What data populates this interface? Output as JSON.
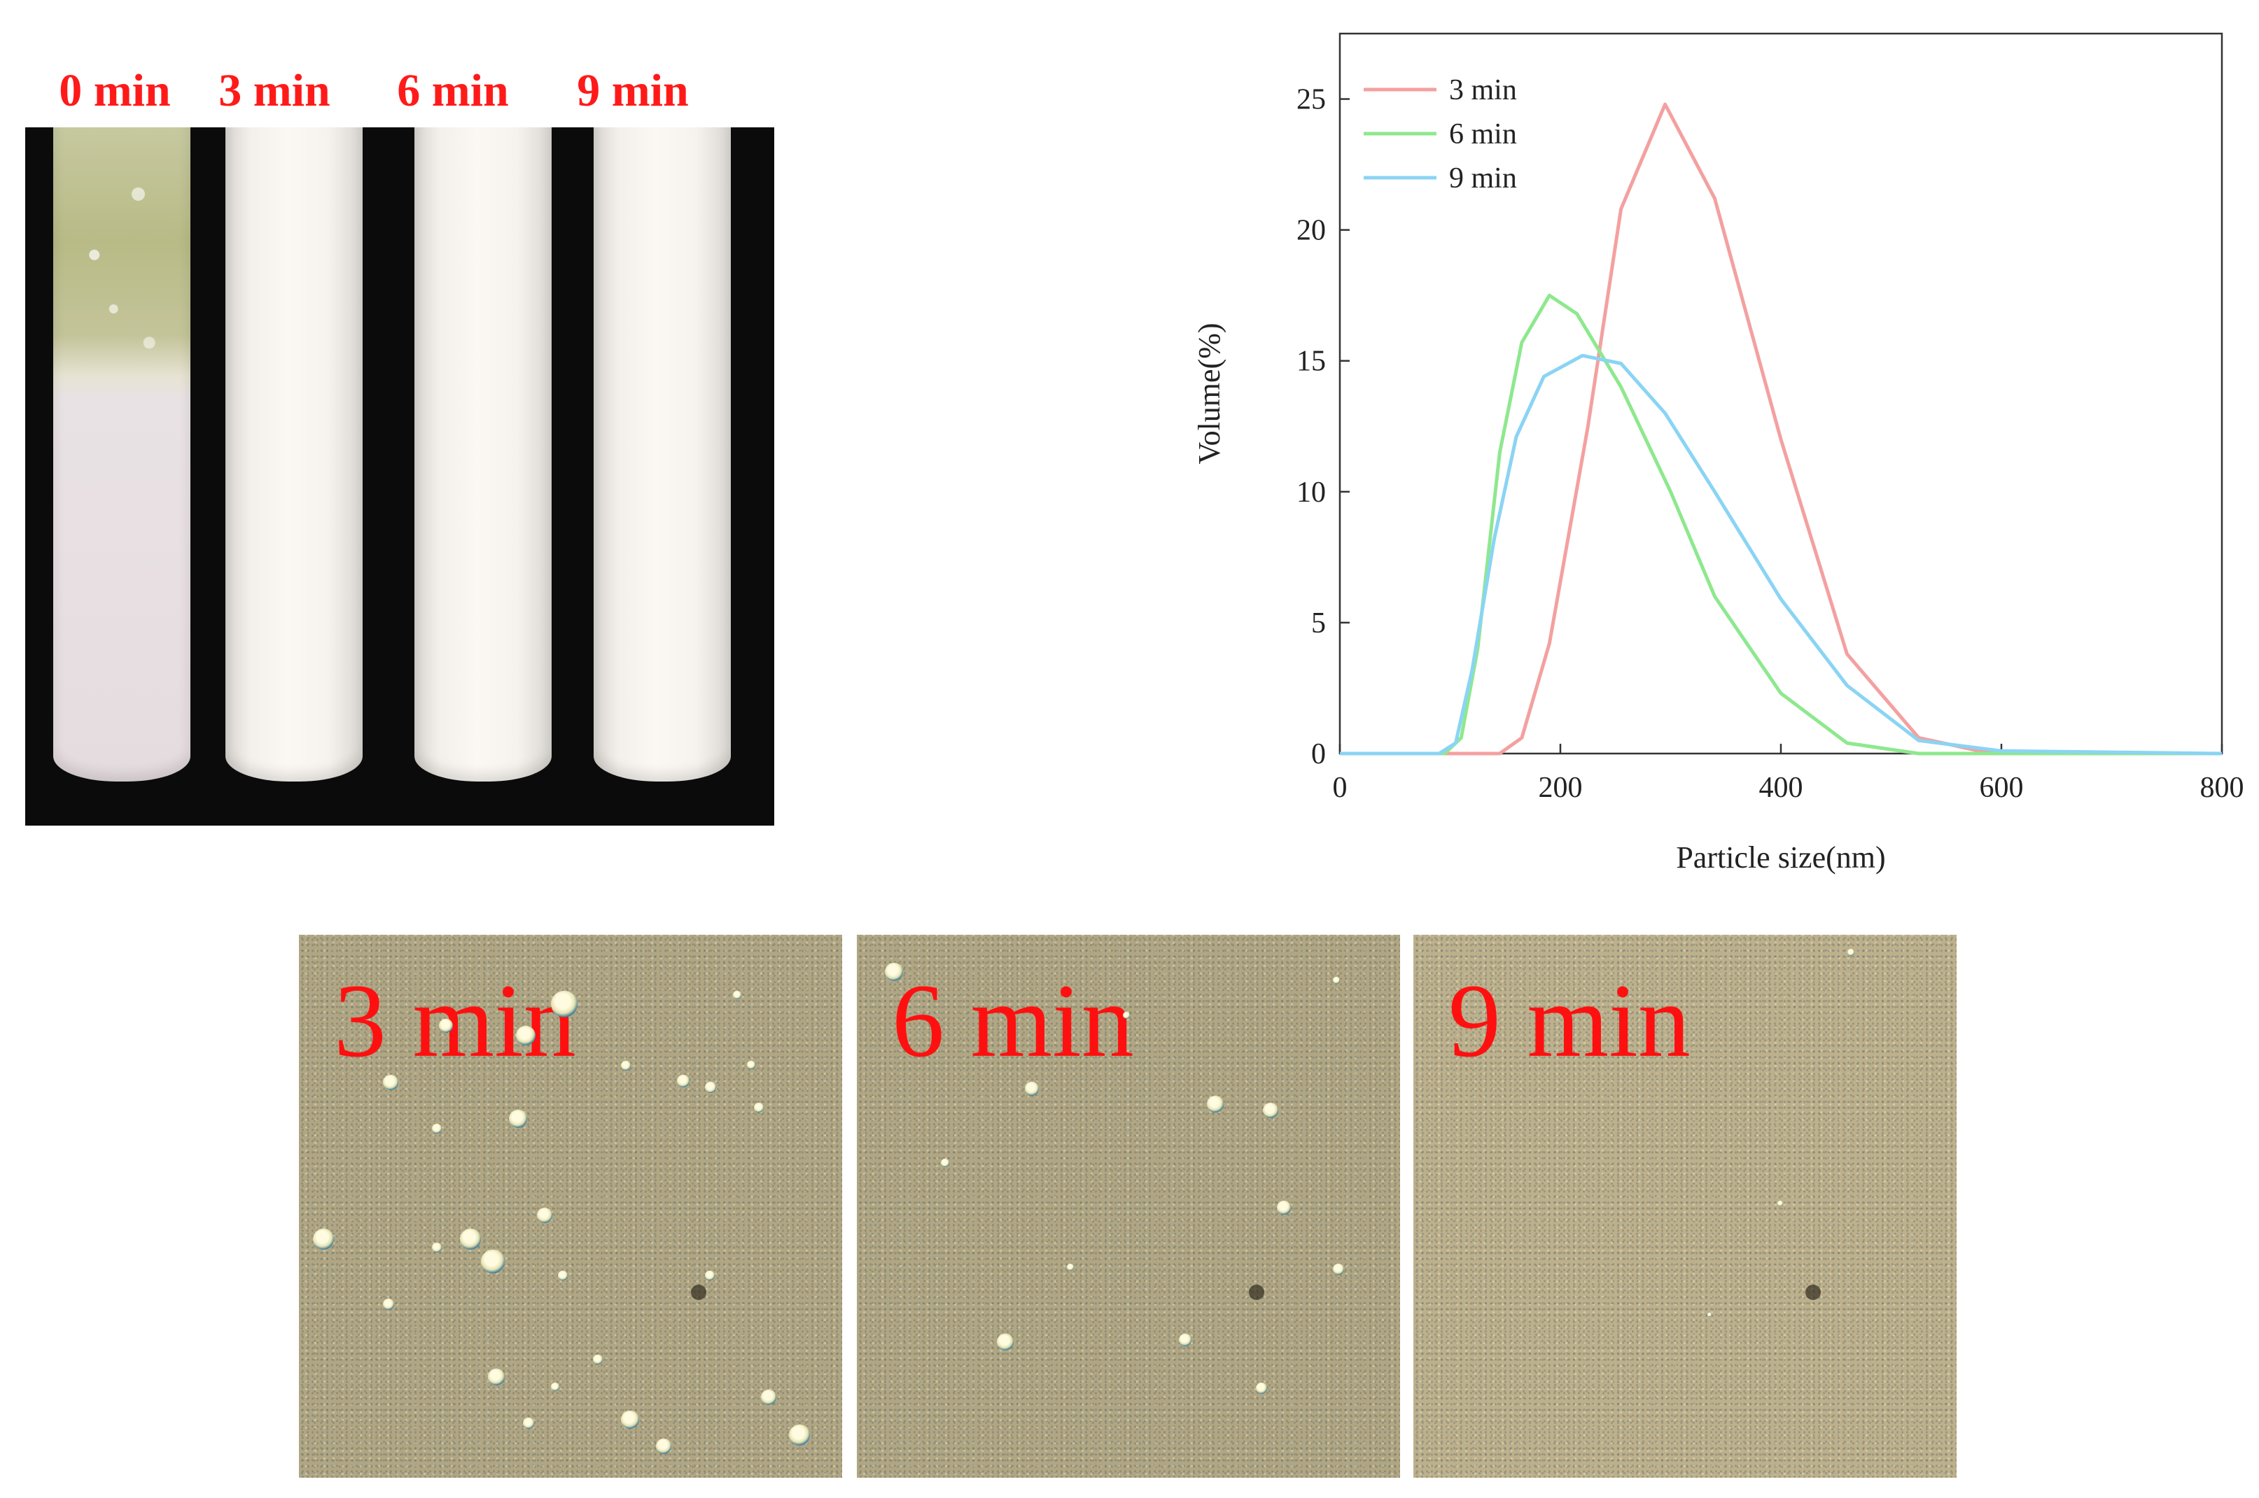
{
  "tube_photo": {
    "labels": [
      "0 min",
      "3 min",
      "6 min",
      "9 min"
    ],
    "label_color": "#ff1a1a"
  },
  "chart_data": {
    "type": "line",
    "title": "",
    "xlabel": "Particle size(nm)",
    "ylabel": "Volume(%)",
    "xlim": [
      0,
      800
    ],
    "ylim": [
      0,
      27.5
    ],
    "xticks": [
      0,
      200,
      400,
      600,
      800
    ],
    "yticks": [
      0,
      5,
      10,
      15,
      20,
      25
    ],
    "grid": false,
    "legend_position": "top-left",
    "series": [
      {
        "name": "3 min",
        "color": "#f4a0a0",
        "x": [
          0,
          145,
          165,
          190,
          225,
          255,
          295,
          340,
          400,
          460,
          525,
          580,
          620,
          800
        ],
        "y": [
          0,
          0,
          0.6,
          4.2,
          12.5,
          20.8,
          24.8,
          21.2,
          12.0,
          3.8,
          0.6,
          0.1,
          0,
          0
        ]
      },
      {
        "name": "6 min",
        "color": "#8ee88e",
        "x": [
          0,
          95,
          110,
          125,
          145,
          165,
          190,
          215,
          255,
          300,
          340,
          400,
          460,
          525,
          580,
          800
        ],
        "y": [
          0,
          0,
          0.6,
          4.0,
          11.5,
          15.7,
          17.5,
          16.8,
          14.0,
          10.0,
          6.0,
          2.3,
          0.4,
          0,
          0,
          0
        ]
      },
      {
        "name": "9 min",
        "color": "#8ad4f4",
        "x": [
          0,
          90,
          105,
          120,
          140,
          160,
          185,
          220,
          255,
          295,
          340,
          400,
          460,
          525,
          600,
          800
        ],
        "y": [
          0,
          0,
          0.4,
          3.2,
          8.2,
          12.1,
          14.4,
          15.2,
          14.9,
          13.0,
          10.0,
          5.9,
          2.6,
          0.5,
          0.1,
          0
        ]
      }
    ]
  },
  "micrographs": {
    "labels": [
      "3 min",
      "6 min",
      "9 min"
    ],
    "label_color": "#ff1010"
  }
}
